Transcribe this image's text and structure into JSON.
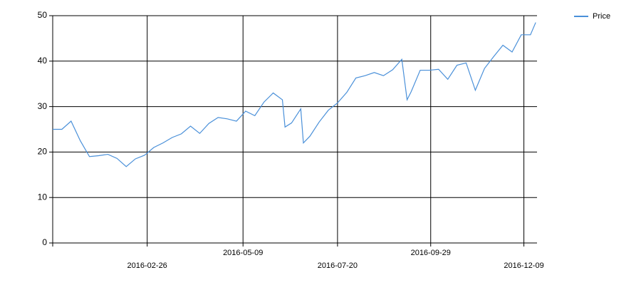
{
  "chart_data": {
    "type": "line",
    "x": [
      "2015-12-16",
      "2015-12-23",
      "2015-12-30",
      "2016-01-06",
      "2016-01-13",
      "2016-01-20",
      "2016-01-27",
      "2016-02-03",
      "2016-02-10",
      "2016-02-17",
      "2016-02-24",
      "2016-03-02",
      "2016-03-09",
      "2016-03-16",
      "2016-03-23",
      "2016-03-30",
      "2016-04-06",
      "2016-04-13",
      "2016-04-20",
      "2016-04-27",
      "2016-05-04",
      "2016-05-11",
      "2016-05-18",
      "2016-05-25",
      "2016-06-01",
      "2016-06-08",
      "2016-06-10",
      "2016-06-15",
      "2016-06-22",
      "2016-06-24",
      "2016-06-29",
      "2016-07-06",
      "2016-07-13",
      "2016-07-20",
      "2016-07-27",
      "2016-08-03",
      "2016-08-10",
      "2016-08-17",
      "2016-08-24",
      "2016-08-31",
      "2016-09-07",
      "2016-09-11",
      "2016-09-14",
      "2016-09-21",
      "2016-09-28",
      "2016-10-05",
      "2016-10-12",
      "2016-10-19",
      "2016-10-26",
      "2016-11-02",
      "2016-11-09",
      "2016-11-16",
      "2016-11-23",
      "2016-11-30",
      "2016-12-07",
      "2016-12-14",
      "2016-12-18"
    ],
    "series": [
      {
        "name": "Price",
        "color": "#4a90d9",
        "values": [
          25,
          25,
          26.8,
          22.5,
          19,
          19.2,
          19.5,
          18.6,
          16.8,
          18.5,
          19.3,
          21,
          22,
          23.2,
          24,
          25.7,
          24.1,
          26.3,
          27.6,
          27.3,
          26.8,
          29,
          28,
          31,
          33,
          31.5,
          25.5,
          26.4,
          29.5,
          22,
          23.5,
          26.6,
          29.2,
          30.8,
          33.1,
          36.3,
          36.8,
          37.5,
          36.8,
          38.1,
          40.4,
          31.5,
          33.2,
          38,
          38,
          38.2,
          36,
          39.1,
          39.6,
          33.6,
          38.4,
          41,
          43.5,
          42,
          45.8,
          45.8,
          48.5
        ]
      }
    ],
    "xlim": [
      "2015-12-16",
      "2016-12-19"
    ],
    "xticks": [
      "2016-02-26",
      "2016-05-09",
      "2016-07-20",
      "2016-09-29",
      "2016-12-09"
    ],
    "ylim": [
      0,
      50
    ],
    "yticks": [
      0,
      10,
      20,
      30,
      40,
      50
    ],
    "grid": true,
    "legend": "top-right"
  }
}
